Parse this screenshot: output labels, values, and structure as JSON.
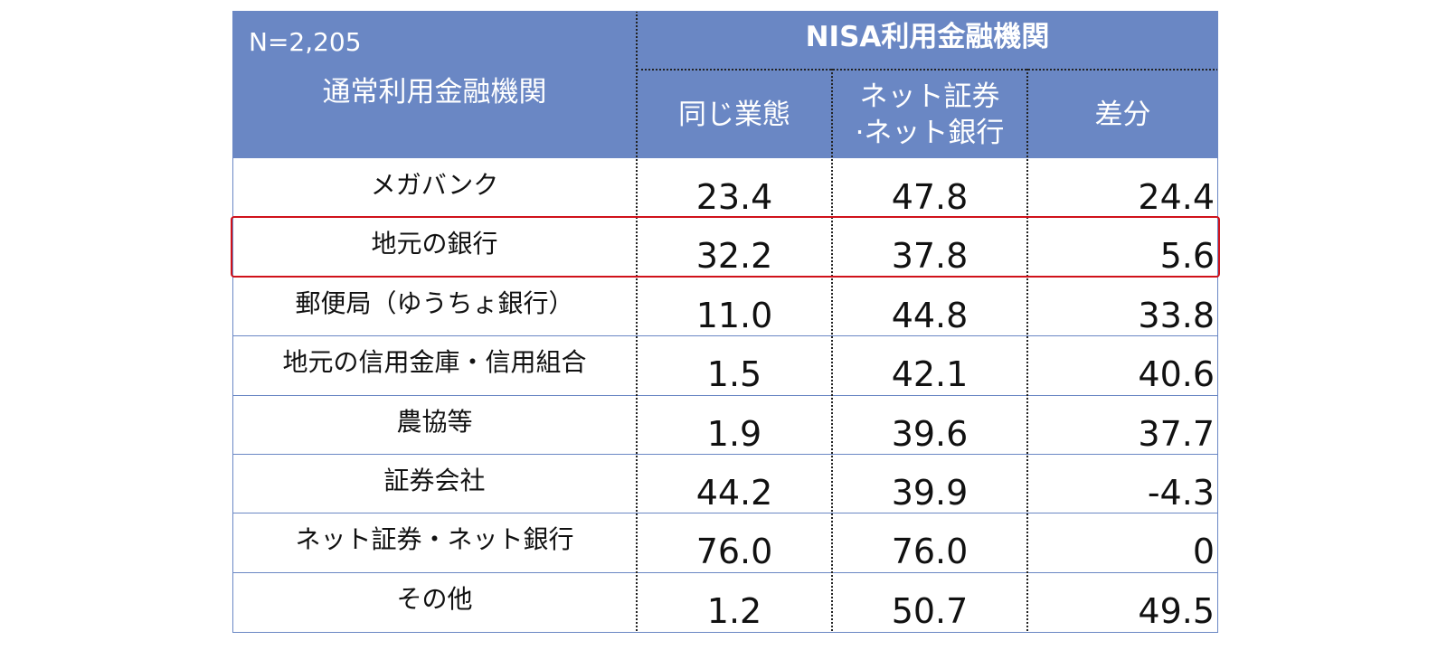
{
  "chart_data": {
    "type": "table",
    "sample_size": "N=2,205",
    "row_header": "通常利用金融機関",
    "column_group_header": "NISA利用金融機関",
    "columns": [
      "同じ業態",
      "ネット証券\n·ネット銀行",
      "差分"
    ],
    "rows": [
      {
        "label": "メガバンク",
        "values": [
          "23.4",
          "47.8",
          "24.4"
        ]
      },
      {
        "label": "地元の銀行",
        "values": [
          "32.2",
          "37.8",
          "5.6"
        ]
      },
      {
        "label": "郵便局（ゆうちょ銀行）",
        "values": [
          "11.0",
          "44.8",
          "33.8"
        ]
      },
      {
        "label": "地元の信用金庫・信用組合",
        "values": [
          "1.5",
          "42.1",
          "40.6"
        ]
      },
      {
        "label": "農協等",
        "values": [
          "1.9",
          "39.6",
          "37.7"
        ]
      },
      {
        "label": "証券会社",
        "values": [
          "44.2",
          "39.9",
          "-4.3"
        ]
      },
      {
        "label": "ネット証券・ネット銀行",
        "values": [
          "76.0",
          "76.0",
          "0"
        ]
      },
      {
        "label": "その他",
        "values": [
          "1.2",
          "50.7",
          "49.5"
        ]
      }
    ],
    "highlighted_row": "地元の銀行"
  },
  "colors": {
    "header_background": "#6a87c4",
    "header_text": "#ffffff",
    "highlight_border": "#d0121b",
    "grid_line": "#6a87c4"
  }
}
